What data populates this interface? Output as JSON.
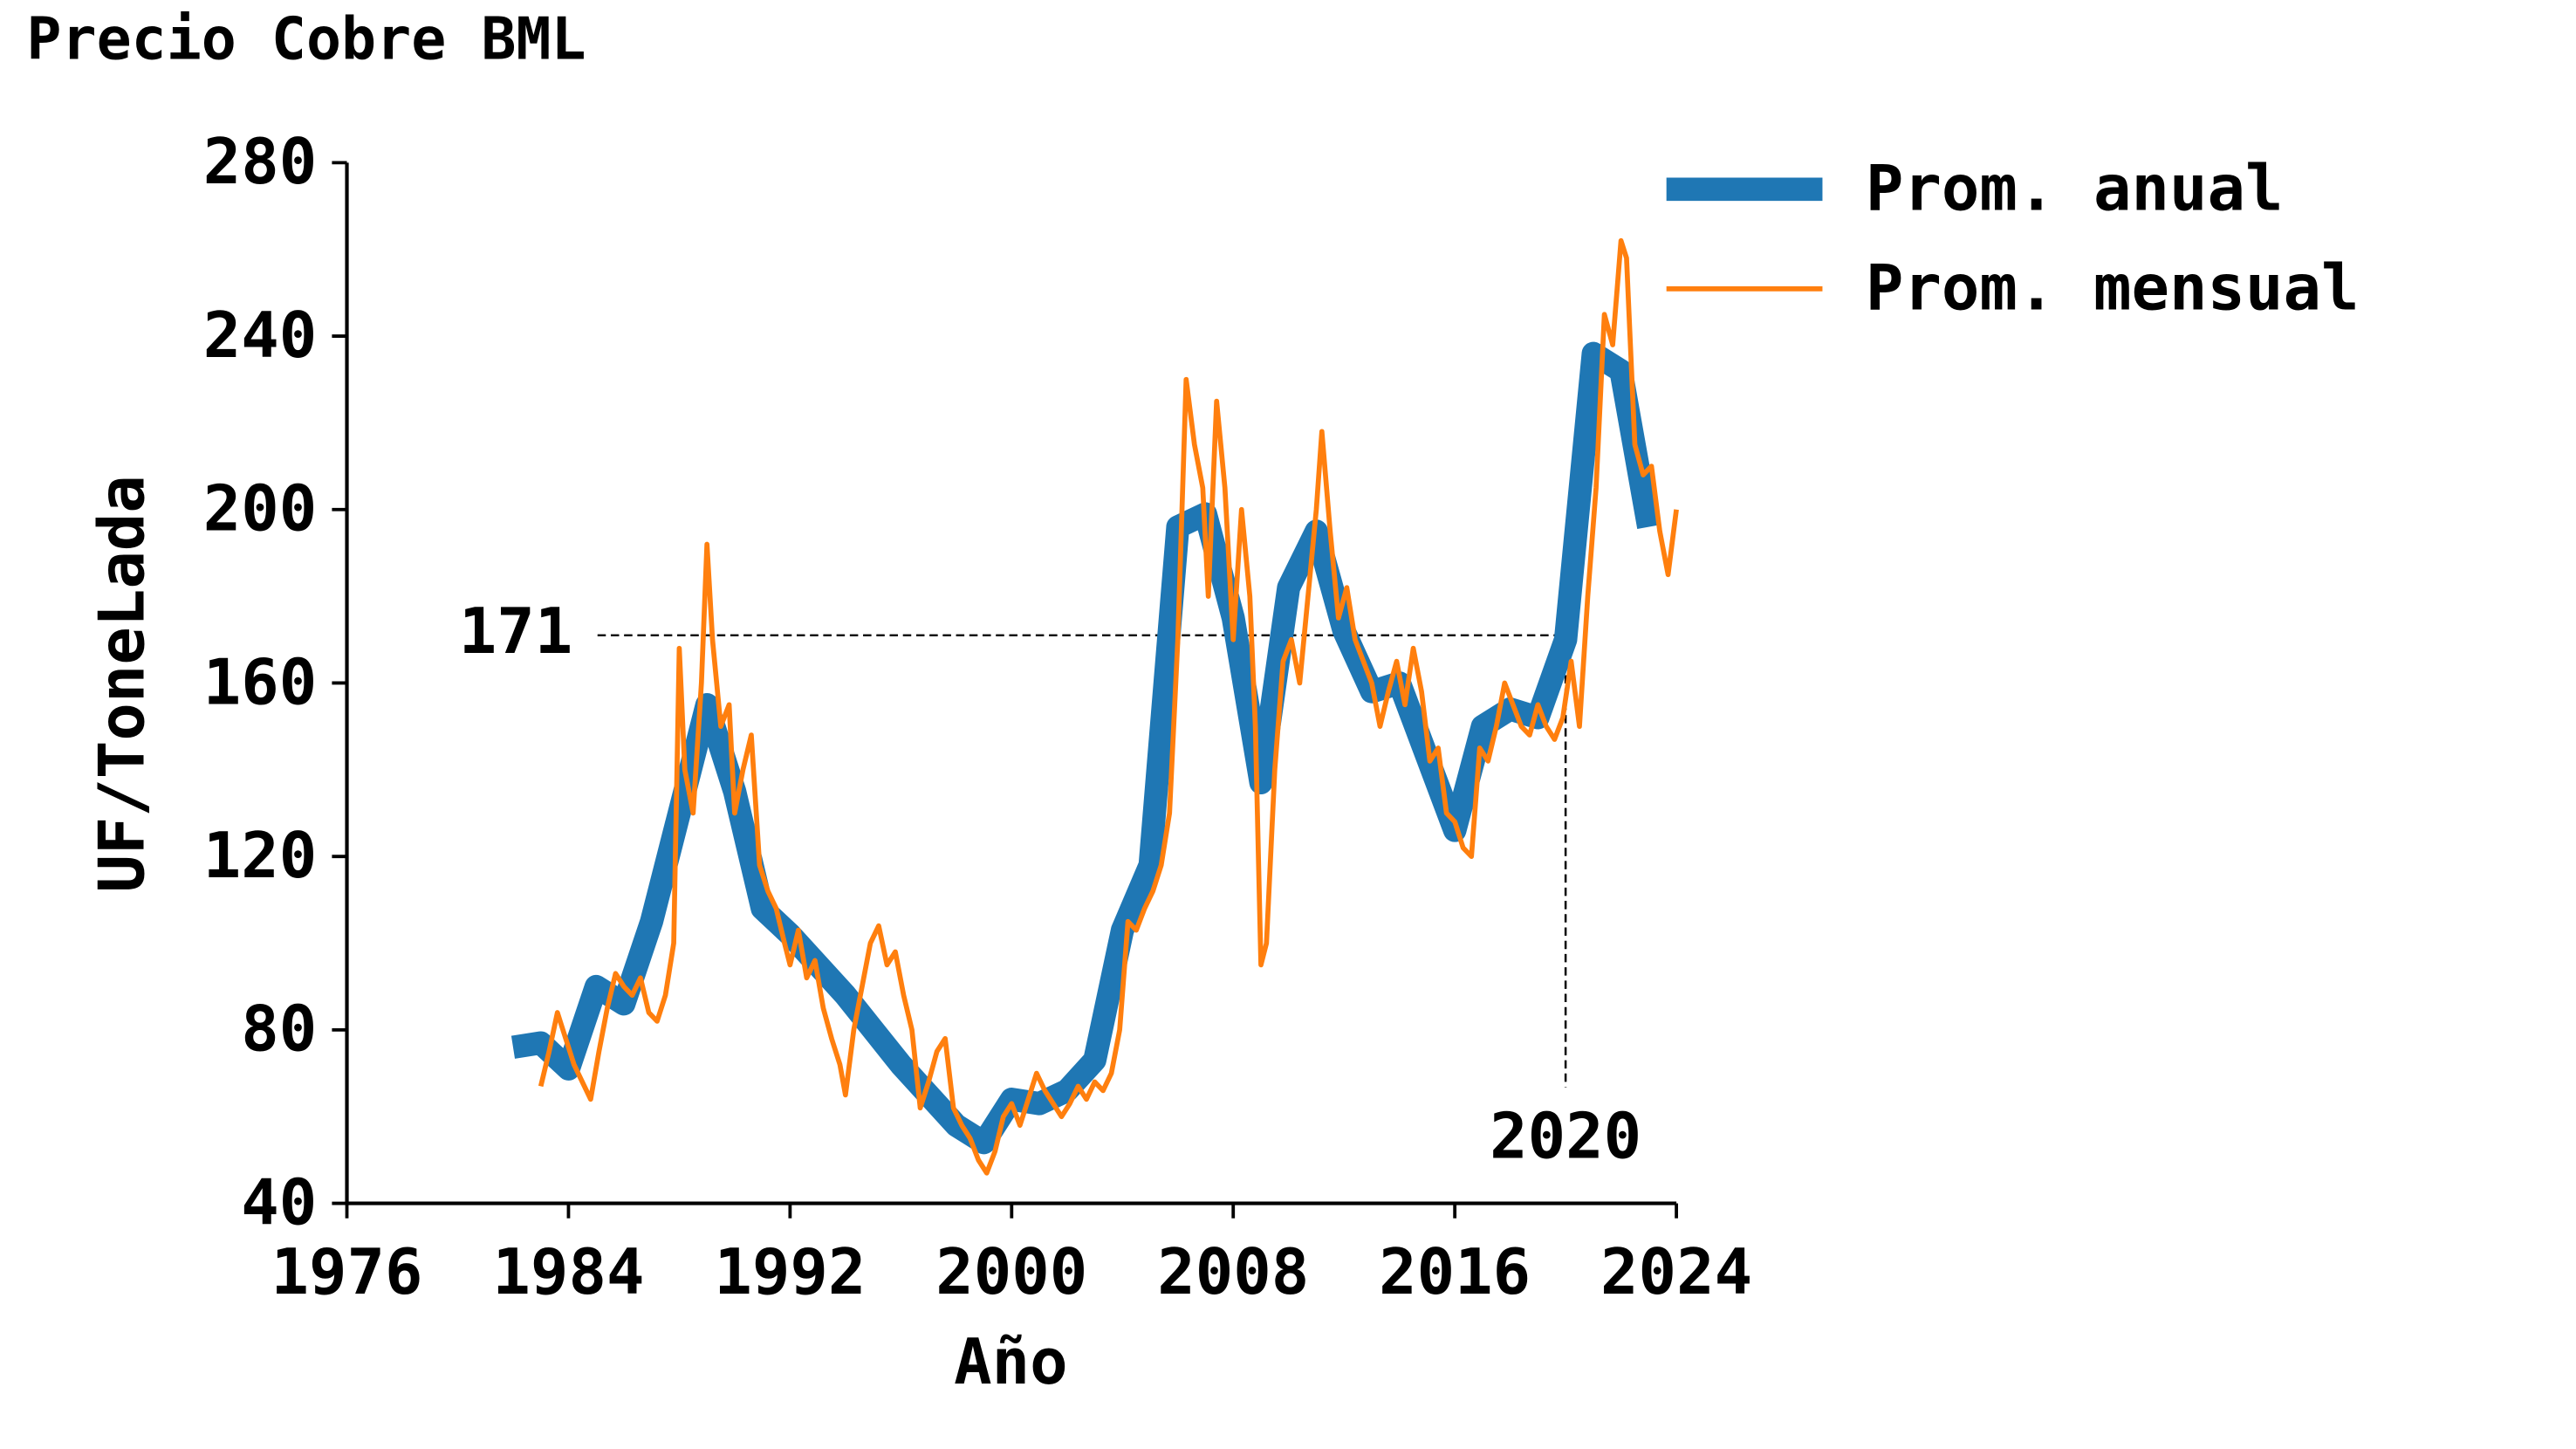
{
  "chart_data": {
    "type": "line",
    "title": "Precio Cobre BML",
    "x_label": "Año",
    "y_label": "UF/ToneLada",
    "xlim": [
      1976,
      2024
    ],
    "xticks": [
      1976,
      1984,
      1992,
      2000,
      2008,
      2016,
      2024
    ],
    "ylim": [
      40,
      280
    ],
    "yticks": [
      40,
      80,
      120,
      160,
      200,
      240,
      280
    ],
    "legend": "upper right outside",
    "reference": {
      "x": 2020,
      "y": 171
    },
    "series": [
      {
        "name": "Prom. anual",
        "color": "#1f77b4",
        "width": "thick",
        "x": [
          1982,
          1983,
          1984,
          1985,
          1986,
          1987,
          1988,
          1989,
          1990,
          1991,
          1992,
          1993,
          1994,
          1995,
          1996,
          1997,
          1998,
          1999,
          2000,
          2001,
          2002,
          2003,
          2004,
          2005,
          2006,
          2007,
          2008,
          2009,
          2010,
          2011,
          2012,
          2013,
          2014,
          2015,
          2016,
          2017,
          2018,
          2019,
          2020,
          2021,
          2022,
          2023
        ],
        "values": [
          76,
          77,
          71,
          90,
          86,
          105,
          130,
          155,
          135,
          108,
          102,
          95,
          88,
          80,
          72,
          65,
          58,
          54,
          64,
          63,
          66,
          73,
          103,
          118,
          196,
          199,
          175,
          137,
          182,
          195,
          172,
          158,
          160,
          143,
          126,
          150,
          154,
          152,
          170,
          236,
          232,
          196
        ]
      },
      {
        "name": "Prom. mensual",
        "color": "#ff7f0e",
        "width": "thin",
        "x": [
          1983.0,
          1983.3,
          1983.6,
          1983.9,
          1984.2,
          1984.5,
          1984.8,
          1985.1,
          1985.4,
          1985.7,
          1986.0,
          1986.3,
          1986.6,
          1986.9,
          1987.2,
          1987.5,
          1987.8,
          1988.0,
          1988.2,
          1988.5,
          1988.8,
          1989.0,
          1989.2,
          1989.5,
          1989.8,
          1990.0,
          1990.3,
          1990.6,
          1990.9,
          1991.2,
          1991.5,
          1991.8,
          1992.0,
          1992.3,
          1992.6,
          1992.9,
          1993.2,
          1993.5,
          1993.8,
          1994.0,
          1994.3,
          1994.6,
          1994.9,
          1995.2,
          1995.5,
          1995.8,
          1996.1,
          1996.4,
          1996.7,
          1997.0,
          1997.3,
          1997.6,
          1997.9,
          1998.2,
          1998.5,
          1998.8,
          1999.1,
          1999.4,
          1999.7,
          2000.0,
          2000.3,
          2000.6,
          2000.9,
          2001.2,
          2001.5,
          2001.8,
          2002.1,
          2002.4,
          2002.7,
          2003.0,
          2003.3,
          2003.6,
          2003.9,
          2004.2,
          2004.5,
          2004.8,
          2005.1,
          2005.4,
          2005.7,
          2006.0,
          2006.3,
          2006.6,
          2006.9,
          2007.1,
          2007.4,
          2007.7,
          2008.0,
          2008.3,
          2008.6,
          2008.8,
          2009.0,
          2009.2,
          2009.5,
          2009.8,
          2010.1,
          2010.4,
          2010.7,
          2011.0,
          2011.2,
          2011.5,
          2011.8,
          2012.1,
          2012.4,
          2012.7,
          2013.0,
          2013.3,
          2013.6,
          2013.9,
          2014.2,
          2014.5,
          2014.8,
          2015.1,
          2015.4,
          2015.7,
          2016.0,
          2016.3,
          2016.6,
          2016.9,
          2017.2,
          2017.5,
          2017.8,
          2018.1,
          2018.4,
          2018.7,
          2019.0,
          2019.3,
          2019.6,
          2019.9,
          2020.2,
          2020.5,
          2020.8,
          2021.1,
          2021.4,
          2021.7,
          2022.0,
          2022.2,
          2022.5,
          2022.8,
          2023.1,
          2023.4,
          2023.7,
          2024.0
        ],
        "values": [
          67,
          75,
          84,
          78,
          72,
          68,
          64,
          75,
          85,
          93,
          90,
          88,
          92,
          84,
          82,
          88,
          100,
          168,
          140,
          130,
          160,
          192,
          170,
          150,
          155,
          130,
          140,
          148,
          118,
          112,
          108,
          100,
          95,
          103,
          92,
          96,
          85,
          78,
          72,
          65,
          80,
          90,
          100,
          104,
          95,
          98,
          88,
          80,
          62,
          68,
          75,
          78,
          62,
          58,
          55,
          50,
          47,
          52,
          60,
          63,
          58,
          64,
          70,
          66,
          63,
          60,
          63,
          67,
          64,
          68,
          66,
          70,
          80,
          105,
          103,
          108,
          112,
          118,
          130,
          170,
          230,
          215,
          205,
          180,
          225,
          205,
          170,
          200,
          180,
          150,
          95,
          100,
          140,
          165,
          170,
          160,
          180,
          200,
          218,
          195,
          175,
          182,
          170,
          165,
          160,
          150,
          158,
          165,
          155,
          168,
          158,
          142,
          145,
          130,
          128,
          122,
          120,
          145,
          142,
          150,
          160,
          155,
          150,
          148,
          155,
          150,
          147,
          152,
          165,
          150,
          180,
          205,
          245,
          238,
          262,
          258,
          215,
          208,
          210,
          195,
          185,
          200
        ]
      }
    ]
  }
}
